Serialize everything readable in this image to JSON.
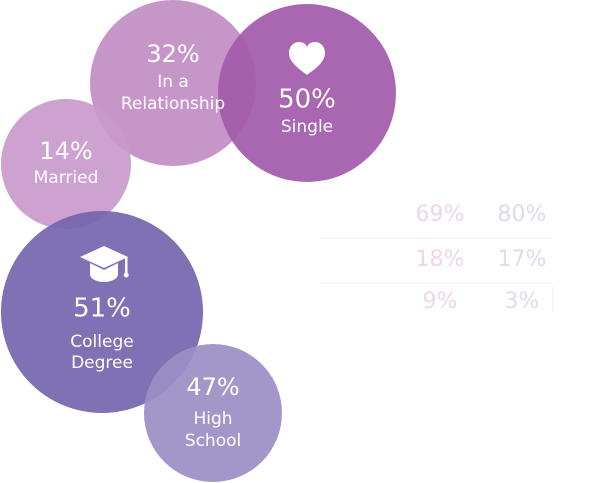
{
  "chart_data": {
    "type": "bubble",
    "bubbles": [
      {
        "id": "relationship",
        "value": 32,
        "value_label": "32%",
        "label_lines": [
          "In a",
          "Relationship"
        ],
        "group": "relationship_status",
        "color": "#C28DC4"
      },
      {
        "id": "single",
        "value": 50,
        "value_label": "50%",
        "label_lines": [
          "Single"
        ],
        "group": "relationship_status",
        "color": "#A25AAA",
        "icon": "heart-icon"
      },
      {
        "id": "married",
        "value": 14,
        "value_label": "14%",
        "label_lines": [
          "Married"
        ],
        "group": "relationship_status",
        "color": "#C999CC"
      },
      {
        "id": "college",
        "value": 51,
        "value_label": "51%",
        "label_lines": [
          "College",
          "Degree"
        ],
        "group": "education",
        "color": "#7465AE",
        "icon": "graduation-cap-icon"
      },
      {
        "id": "highschool",
        "value": 47,
        "value_label": "47%",
        "label_lines": [
          "High",
          "School"
        ],
        "group": "education",
        "color": "#9B8EC5"
      }
    ],
    "comparison_table": {
      "columns": [
        {
          "color": "#EBD6EC",
          "values": [
            "69%",
            "18%",
            "9%"
          ]
        },
        {
          "color": "#D9DCEE",
          "values": [
            "80%",
            "17%",
            "3%"
          ]
        }
      ],
      "divider_color": "#F1F1F1"
    }
  }
}
